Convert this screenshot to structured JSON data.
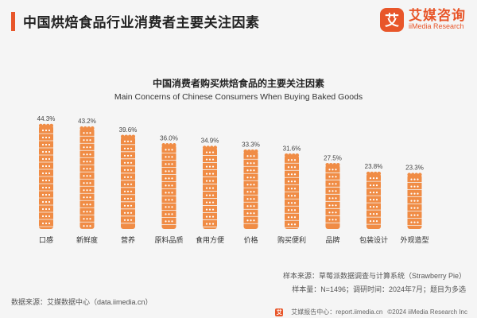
{
  "header": {
    "title": "中国烘焙食品行业消费者主要关注因素",
    "logo_mark": "艾",
    "logo_name": "艾媒咨询",
    "logo_sub": "iiMedia Research"
  },
  "colors": {
    "accent": "#e8562a",
    "bar": "#f08c45",
    "bar_dot": "#ffffff"
  },
  "chart_data": {
    "type": "bar",
    "title": "中国消费者购买烘焙食品的主要关注因素",
    "subtitle": "Main Concerns of Chinese Consumers When Buying Baked Goods",
    "categories": [
      "口感",
      "新鲜度",
      "营养",
      "原料品质",
      "食用方便",
      "价格",
      "购买便利",
      "品牌",
      "包装设计",
      "外观造型"
    ],
    "values": [
      44.3,
      43.2,
      39.6,
      36.0,
      34.9,
      33.3,
      31.6,
      27.5,
      23.8,
      23.3
    ],
    "value_labels": [
      "44.3%",
      "43.2%",
      "39.6%",
      "36.0%",
      "34.9%",
      "33.3%",
      "31.6%",
      "27.5%",
      "23.8%",
      "23.3%"
    ],
    "ylim": [
      0,
      50
    ],
    "grid": false,
    "legend": "none"
  },
  "footer": {
    "source_left": "数据来源：艾媒数据中心（data.iimedia.cn）",
    "sample_source": "样本来源：草莓派数据调查与计算系统（Strawberry Pie）",
    "sample_info": "样本量：N=1496；调研时间：2024年7月；题目为多选",
    "report_site": "艾媒报告中心：report.iimedia.cn",
    "copyright": "©2024 iiMedia Research Inc"
  }
}
